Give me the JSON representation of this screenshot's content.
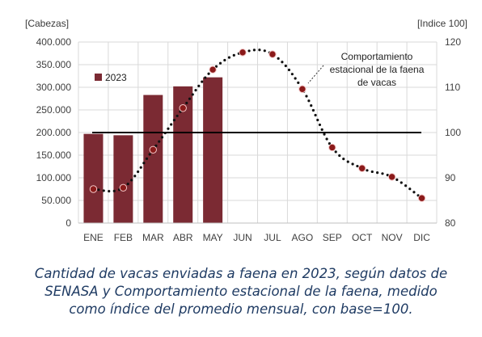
{
  "chart_data": {
    "type": "bar",
    "categories": [
      "ENE",
      "FEB",
      "MAR",
      "ABR",
      "MAY",
      "JUN",
      "JUL",
      "AGO",
      "SEP",
      "OCT",
      "NOV",
      "DIC"
    ],
    "left_axis": {
      "label": "[Cabezas]",
      "ylim": [
        0,
        400000
      ],
      "ticks": [
        "0",
        "50.000",
        "100.000",
        "150.000",
        "200.000",
        "250.000",
        "300.000",
        "350.000",
        "400.000"
      ]
    },
    "right_axis": {
      "label": "[Indice 100]",
      "ylim": [
        80,
        120
      ],
      "ticks": [
        "80",
        "90",
        "100",
        "110",
        "120"
      ]
    },
    "series": [
      {
        "name": "2023",
        "type": "bar",
        "axis": "left",
        "color": "#7b2a33",
        "values": [
          197000,
          194000,
          283000,
          302000,
          322000,
          null,
          null,
          null,
          null,
          null,
          null,
          null
        ]
      },
      {
        "name": "Comportamiento estacional de la faena de vacas",
        "type": "line-dotted",
        "axis": "right",
        "color": "#8b1a1a",
        "values": [
          87.5,
          87.8,
          96.2,
          105.4,
          113.9,
          117.7,
          117.3,
          109.6,
          96.7,
          92.1,
          90.2,
          85.5
        ]
      }
    ],
    "reference_line": {
      "axis": "right",
      "value": 100,
      "color": "#000000"
    },
    "legend": {
      "label": "2023",
      "placement": "top-left"
    },
    "annotation": {
      "lines": [
        "Comportamiento",
        "estacional de la faena",
        "de vacas"
      ]
    },
    "grid": true
  },
  "caption": {
    "lines": [
      "Cantidad de vacas enviadas a faena en 2023, según datos de",
      "SENASA y Comportamiento estacional de la faena, medido",
      "como índice del promedio mensual, con base=100."
    ]
  }
}
